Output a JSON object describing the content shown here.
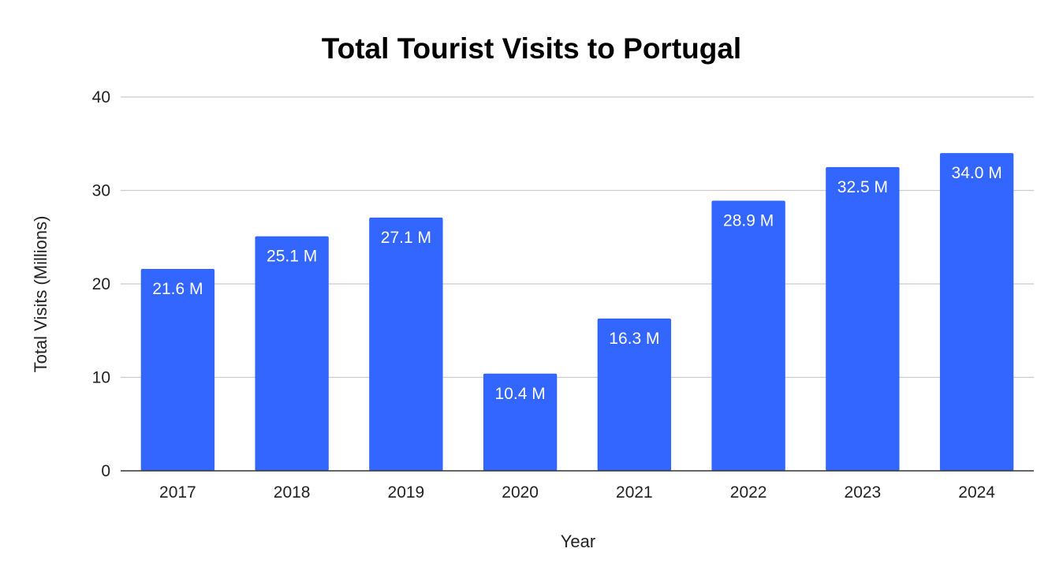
{
  "chart_data": {
    "type": "bar",
    "title": "Total Tourist Visits to Portugal",
    "xlabel": "Year",
    "ylabel": "Total Visits (Millions)",
    "categories": [
      "2017",
      "2018",
      "2019",
      "2020",
      "2021",
      "2022",
      "2023",
      "2024"
    ],
    "values": [
      21.6,
      25.1,
      27.1,
      10.4,
      16.3,
      28.9,
      32.5,
      34.0
    ],
    "data_labels": [
      "21.6 M",
      "25.1 M",
      "27.1 M",
      "10.4 M",
      "16.3 M",
      "28.9 M",
      "32.5 M",
      "34.0 M"
    ],
    "ylim": [
      0,
      40
    ],
    "yticks": [
      0,
      10,
      20,
      30,
      40
    ],
    "ytick_labels": [
      "0",
      "10",
      "20",
      "30",
      "40"
    ],
    "grid": true,
    "legend": "none",
    "colors": {
      "bar": "#3366ff",
      "grid": "#cccccc",
      "axis": "#333333"
    }
  }
}
